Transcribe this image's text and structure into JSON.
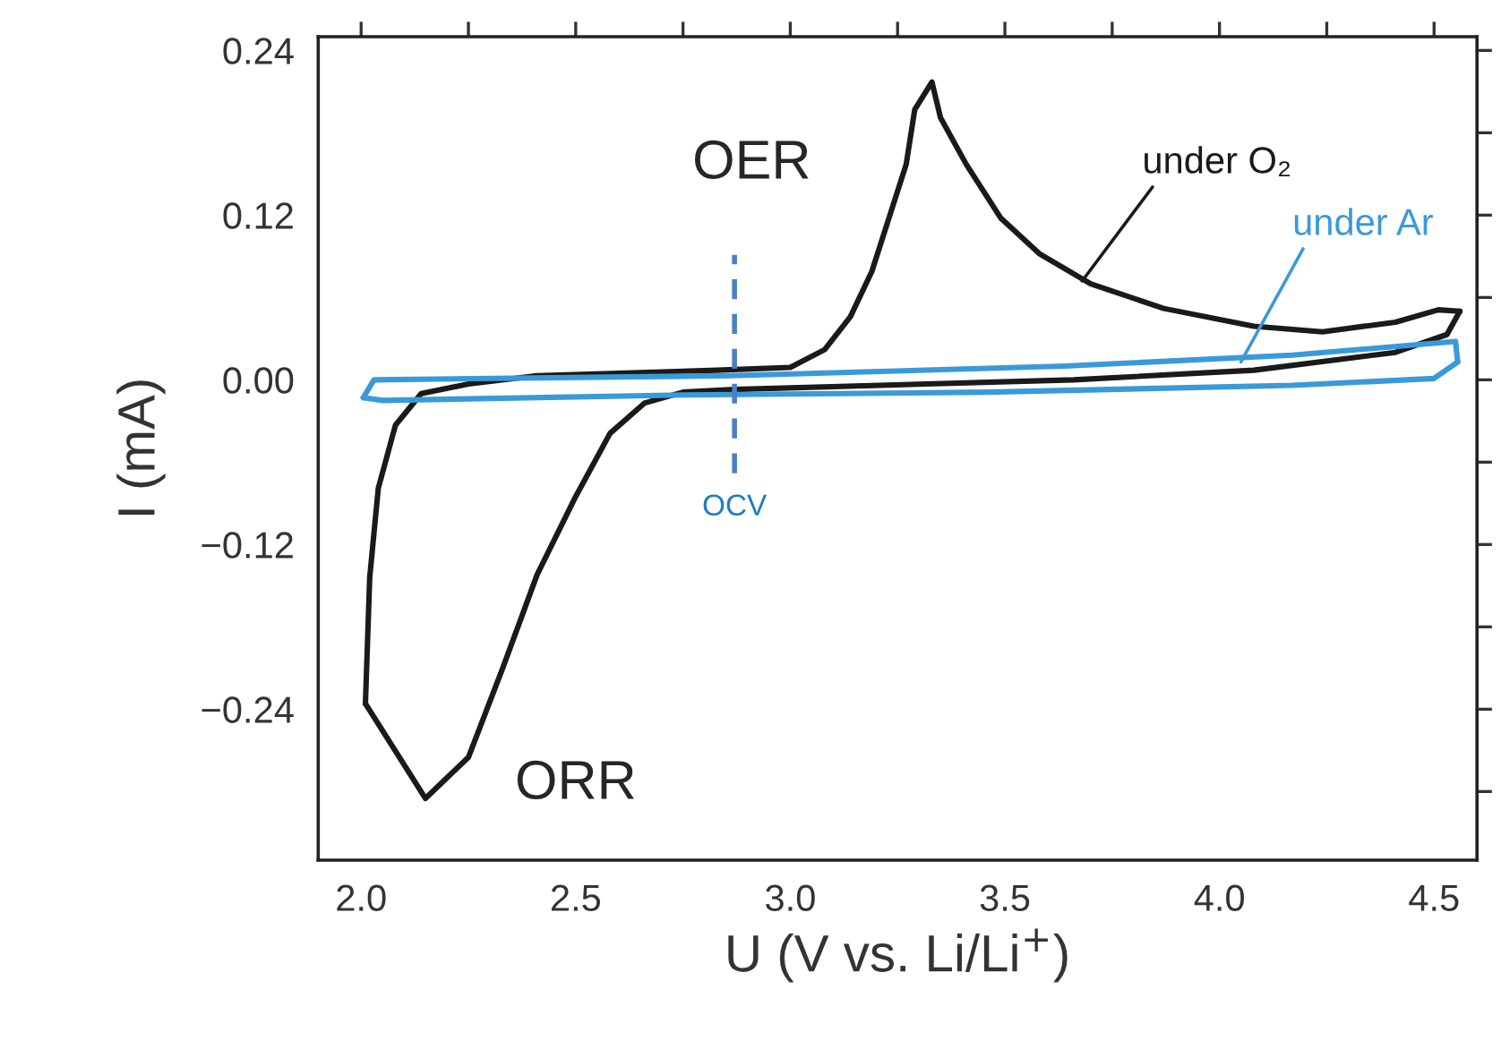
{
  "chart_data": {
    "type": "line",
    "xlabel": "U (V vs. Li/Li$^{+}$)",
    "ylabel": "I (mA)",
    "xlim": [
      1.9,
      4.6
    ],
    "ylim": [
      -0.35,
      0.25
    ],
    "xticks": [
      {
        "value": 2.0,
        "label": "2.0"
      },
      {
        "value": 2.25,
        "label": null
      },
      {
        "value": 2.5,
        "label": "2.5"
      },
      {
        "value": 2.75,
        "label": null
      },
      {
        "value": 3.0,
        "label": "3.0"
      },
      {
        "value": 3.25,
        "label": null
      },
      {
        "value": 3.5,
        "label": "3.5"
      },
      {
        "value": 3.75,
        "label": null
      },
      {
        "value": 4.0,
        "label": "4.0"
      },
      {
        "value": 4.25,
        "label": null
      },
      {
        "value": 4.5,
        "label": "4.5"
      }
    ],
    "yticks": [
      {
        "value": 0.24,
        "label": "0.24"
      },
      {
        "value": 0.18,
        "label": null
      },
      {
        "value": 0.12,
        "label": "0.12"
      },
      {
        "value": 0.06,
        "label": null
      },
      {
        "value": 0.0,
        "label": "0.00"
      },
      {
        "value": -0.06,
        "label": null
      },
      {
        "value": -0.12,
        "label": "−0.12"
      },
      {
        "value": -0.18,
        "label": null
      },
      {
        "value": -0.24,
        "label": "−0.24"
      },
      {
        "value": -0.3,
        "label": null
      }
    ],
    "grid": false,
    "legend": false,
    "marker": "none",
    "line_style": "solid",
    "series": [
      {
        "name": "under O₂",
        "color": "#1a1a1a",
        "x": [
          2.01,
          2.15,
          2.25,
          2.33,
          2.41,
          2.5,
          2.58,
          2.66,
          2.75,
          2.87,
          3.66,
          4.08,
          4.41,
          4.53,
          4.56
        ],
        "values": [
          -0.236,
          -0.305,
          -0.275,
          -0.21,
          -0.142,
          -0.085,
          -0.039,
          -0.017,
          -0.009,
          -0.007,
          0.0,
          0.007,
          0.02,
          0.033,
          0.05
        ]
      },
      {
        "color": "#1a1a1a",
        "x": [
          4.56,
          4.51,
          4.41,
          4.24,
          4.08,
          3.87,
          3.7,
          3.58,
          3.49,
          3.41,
          3.35,
          3.33,
          3.29,
          3.27,
          3.23,
          3.19,
          3.14,
          3.08,
          3.0,
          2.83,
          2.41,
          2.25,
          2.14,
          2.08,
          2.04,
          2.02,
          2.01
        ],
        "values": [
          0.05,
          0.051,
          0.042,
          0.035,
          0.039,
          0.052,
          0.07,
          0.092,
          0.118,
          0.157,
          0.191,
          0.217,
          0.197,
          0.157,
          0.118,
          0.079,
          0.046,
          0.022,
          0.009,
          0.007,
          0.003,
          -0.003,
          -0.01,
          -0.033,
          -0.079,
          -0.144,
          -0.236
        ]
      },
      {
        "name": "under Ar",
        "color": "#3a9ad9",
        "x": [
          2.005,
          2.03,
          2.86,
          3.64,
          4.17,
          4.55,
          4.555
        ],
        "values": [
          -0.013,
          0.0,
          0.003,
          0.01,
          0.018,
          0.028,
          0.013
        ]
      },
      {
        "color": "#3a9ad9",
        "x": [
          4.555,
          4.5,
          4.17,
          3.46,
          2.76,
          2.05,
          2.005
        ],
        "values": [
          0.013,
          0.001,
          -0.004,
          -0.009,
          -0.011,
          -0.015,
          -0.013
        ]
      }
    ],
    "ref_lines": [
      {
        "axis": "x",
        "value": 2.87,
        "label": "OCV",
        "color": "#4a7fc4",
        "line_style": "dashed"
      }
    ],
    "annotations": [
      {
        "text": "OER",
        "x": 3.33,
        "y": 0.217
      },
      {
        "text": "ORR",
        "x": 2.15,
        "y": -0.305
      }
    ]
  }
}
